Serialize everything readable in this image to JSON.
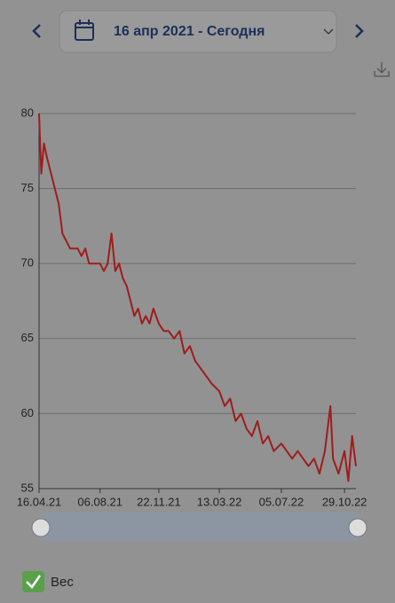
{
  "date_range": "16 апр 2021 - Сегодня",
  "chart_data": {
    "type": "line",
    "x": [
      "2021-04-16",
      "2021-04-20",
      "2021-04-25",
      "2021-05-01",
      "2021-05-08",
      "2021-05-15",
      "2021-05-22",
      "2021-05-29",
      "2021-06-05",
      "2021-06-12",
      "2021-06-19",
      "2021-06-26",
      "2021-07-03",
      "2021-07-10",
      "2021-07-17",
      "2021-07-24",
      "2021-08-06",
      "2021-08-13",
      "2021-08-20",
      "2021-08-27",
      "2021-09-03",
      "2021-09-10",
      "2021-09-17",
      "2021-09-24",
      "2021-10-01",
      "2021-10-08",
      "2021-10-15",
      "2021-10-22",
      "2021-10-29",
      "2021-11-05",
      "2021-11-12",
      "2021-11-22",
      "2021-12-01",
      "2021-12-10",
      "2021-12-20",
      "2021-12-30",
      "2022-01-08",
      "2022-01-18",
      "2022-01-28",
      "2022-02-07",
      "2022-02-17",
      "2022-02-27",
      "2022-03-13",
      "2022-03-23",
      "2022-04-02",
      "2022-04-12",
      "2022-04-22",
      "2022-05-02",
      "2022-05-12",
      "2022-05-22",
      "2022-06-01",
      "2022-06-11",
      "2022-06-21",
      "2022-07-05",
      "2022-07-15",
      "2022-07-25",
      "2022-08-04",
      "2022-08-14",
      "2022-08-24",
      "2022-09-03",
      "2022-09-13",
      "2022-09-23",
      "2022-10-03",
      "2022-10-08",
      "2022-10-18",
      "2022-10-29",
      "2022-11-05",
      "2022-11-12",
      "2022-11-19"
    ],
    "series": [
      {
        "name": "Вес",
        "color": "#a01c1c",
        "values": [
          80,
          76,
          78,
          77,
          76,
          75,
          74,
          72,
          71.5,
          71,
          71,
          71,
          70.5,
          71,
          70,
          70,
          70,
          69.5,
          70,
          72,
          69.5,
          70,
          69,
          68.5,
          67.5,
          66.5,
          67,
          66,
          66.5,
          66,
          67,
          66,
          65.5,
          65.5,
          65,
          65.5,
          64,
          64.5,
          63.5,
          63,
          62.5,
          62,
          61.5,
          60.5,
          61,
          59.5,
          60,
          59,
          58.5,
          59.5,
          58,
          58.5,
          57.5,
          58,
          57.5,
          57,
          57.5,
          57,
          56.5,
          57,
          56,
          57.5,
          60.5,
          57,
          56,
          57.5,
          55.5,
          58.5,
          56.5
        ]
      }
    ],
    "xlim": [
      "2021-04-16",
      "2022-11-19"
    ],
    "xticks": [
      {
        "value": "2021-04-16",
        "label": "16.04.21"
      },
      {
        "value": "2021-08-06",
        "label": "06.08.21"
      },
      {
        "value": "2021-11-22",
        "label": "22.11.21"
      },
      {
        "value": "2022-03-13",
        "label": "13.03.22"
      },
      {
        "value": "2022-07-05",
        "label": "05.07.22"
      },
      {
        "value": "2022-10-29",
        "label": "29.10.22"
      }
    ],
    "ylim": [
      55,
      80
    ],
    "yticks": [
      55,
      60,
      65,
      70,
      75,
      80
    ],
    "grid": true
  }
}
